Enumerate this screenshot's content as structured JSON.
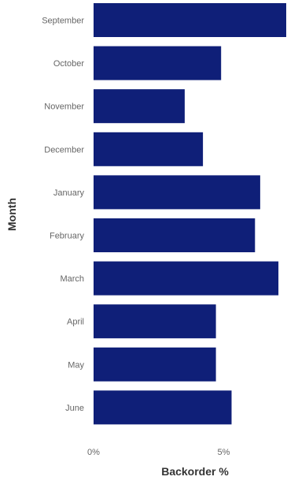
{
  "chart_data": {
    "type": "bar",
    "orientation": "horizontal",
    "xlabel": "Backorder %",
    "ylabel": "Month",
    "categories": [
      "September",
      "October",
      "November",
      "December",
      "January",
      "February",
      "March",
      "April",
      "May",
      "June"
    ],
    "values": [
      7.4,
      4.9,
      3.5,
      4.2,
      6.4,
      6.2,
      7.1,
      4.7,
      4.7,
      5.3
    ],
    "x_ticks": [
      "0%",
      "5%"
    ],
    "x_tick_values": [
      0,
      5
    ],
    "xlim": [
      0,
      7.4
    ],
    "grid": false,
    "colors": {
      "bar": "#0f1f78",
      "tick_label": "#666666",
      "axis_title": "#333333"
    }
  }
}
